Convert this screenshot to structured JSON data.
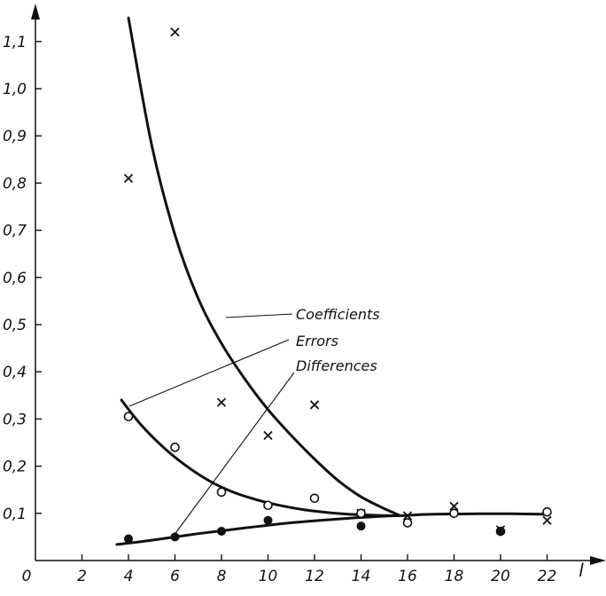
{
  "chart_data": {
    "type": "scatter",
    "title": "",
    "xlabel": "l",
    "ylabel": "",
    "xlim": [
      0,
      23
    ],
    "ylim": [
      0,
      1.15
    ],
    "x_ticks": [
      0,
      2,
      4,
      6,
      8,
      10,
      12,
      14,
      16,
      18,
      20,
      22
    ],
    "x_tick_labels": [
      "0",
      "2",
      "4",
      "6",
      "8",
      "10",
      "12",
      "14",
      "16",
      "18",
      "20",
      "22"
    ],
    "y_ticks": [
      0.1,
      0.2,
      0.3,
      0.4,
      0.5,
      0.6,
      0.7,
      0.8,
      0.9,
      1.0,
      1.1
    ],
    "y_tick_labels": [
      "0,1",
      "0,2",
      "0,3",
      "0,4",
      "0,5",
      "0,6",
      "0,7",
      "0,8",
      "0,9",
      "1,0",
      "1,1"
    ],
    "grid": false,
    "legend": "none",
    "series": [
      {
        "name": "Coefficients",
        "marker": "x",
        "points": [
          [
            4,
            0.81
          ],
          [
            6,
            1.12
          ],
          [
            8,
            0.335
          ],
          [
            10,
            0.265
          ],
          [
            12,
            0.33
          ],
          [
            14,
            0.1
          ],
          [
            16,
            0.095
          ],
          [
            18,
            0.115
          ],
          [
            20,
            0.065
          ],
          [
            22,
            0.085
          ]
        ],
        "curve": [
          [
            4,
            1.15
          ],
          [
            5,
            0.88
          ],
          [
            6,
            0.69
          ],
          [
            7,
            0.555
          ],
          [
            8,
            0.46
          ],
          [
            9,
            0.385
          ],
          [
            10,
            0.32
          ],
          [
            11,
            0.265
          ],
          [
            12,
            0.215
          ],
          [
            13,
            0.17
          ],
          [
            14,
            0.135
          ],
          [
            15,
            0.11
          ],
          [
            15.6,
            0.097
          ]
        ]
      },
      {
        "name": "Errors",
        "marker": "open-circle",
        "points": [
          [
            4,
            0.305
          ],
          [
            6,
            0.24
          ],
          [
            8,
            0.145
          ],
          [
            10,
            0.117
          ],
          [
            12,
            0.132
          ],
          [
            14,
            0.1
          ],
          [
            16,
            0.08
          ],
          [
            18,
            0.1
          ],
          [
            20,
            0.062
          ],
          [
            22,
            0.103
          ]
        ],
        "curve": [
          [
            3.7,
            0.34
          ],
          [
            4.5,
            0.29
          ],
          [
            5.5,
            0.24
          ],
          [
            6.5,
            0.2
          ],
          [
            7.5,
            0.168
          ],
          [
            8.5,
            0.145
          ],
          [
            9.5,
            0.129
          ],
          [
            10.5,
            0.117
          ],
          [
            11.5,
            0.108
          ],
          [
            12.5,
            0.102
          ],
          [
            13.5,
            0.098
          ],
          [
            14.5,
            0.096
          ],
          [
            15.5,
            0.095
          ],
          [
            17,
            0.098
          ],
          [
            19,
            0.099
          ],
          [
            20.5,
            0.099
          ],
          [
            22,
            0.098
          ]
        ]
      },
      {
        "name": "Differences",
        "marker": "filled-circle",
        "points": [
          [
            4,
            0.046
          ],
          [
            6,
            0.05
          ],
          [
            8,
            0.062
          ],
          [
            10,
            0.085
          ],
          [
            14,
            0.073
          ],
          [
            20,
            0.062
          ]
        ],
        "curve": [
          [
            3.5,
            0.034
          ],
          [
            5,
            0.043
          ],
          [
            7,
            0.057
          ],
          [
            9,
            0.069
          ],
          [
            11,
            0.08
          ],
          [
            13,
            0.088
          ],
          [
            15,
            0.094
          ],
          [
            15.6,
            0.095
          ]
        ]
      }
    ],
    "annotations": [
      {
        "text": "Coefficients",
        "series": "Coefficients"
      },
      {
        "text": "Errors",
        "series": "Errors"
      },
      {
        "text": "Differences",
        "series": "Differences"
      }
    ]
  }
}
